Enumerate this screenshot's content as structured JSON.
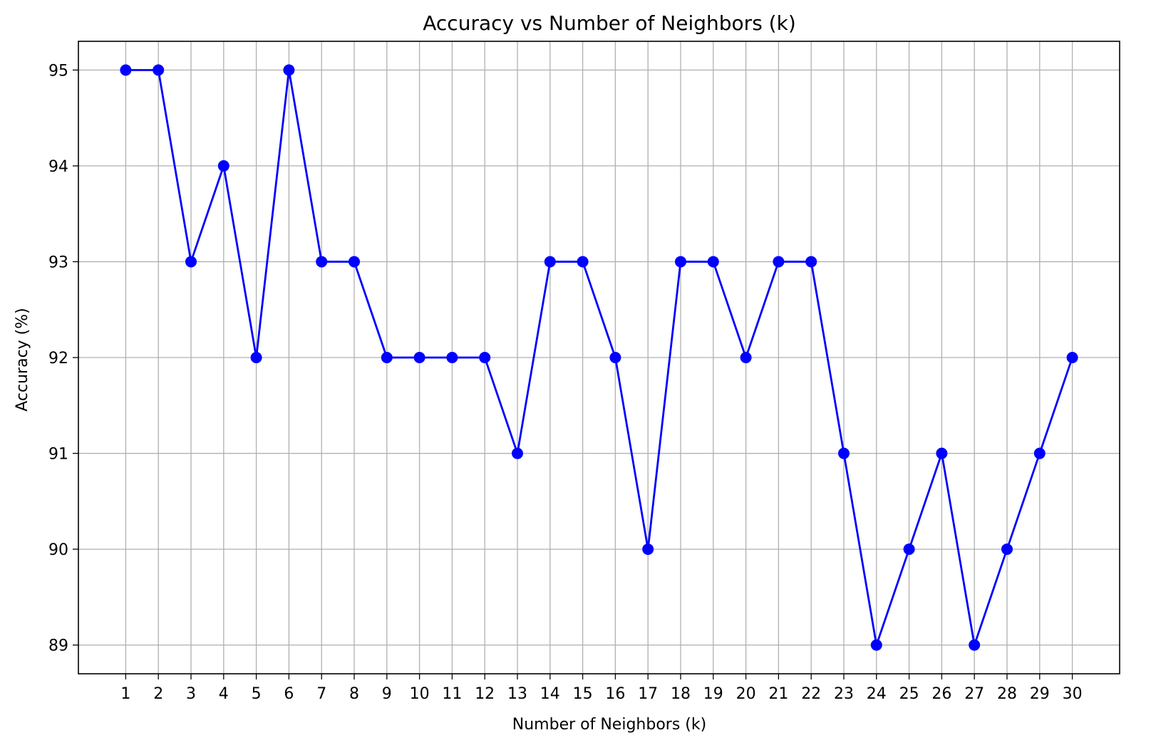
{
  "chart_data": {
    "type": "line",
    "title": "Accuracy vs Number of Neighbors (k)",
    "xlabel": "Number of Neighbors (k)",
    "ylabel": "Accuracy (%)",
    "x": [
      1,
      2,
      3,
      4,
      5,
      6,
      7,
      8,
      9,
      10,
      11,
      12,
      13,
      14,
      15,
      16,
      17,
      18,
      19,
      20,
      21,
      22,
      23,
      24,
      25,
      26,
      27,
      28,
      29,
      30
    ],
    "series": [
      {
        "values": [
          95,
          95,
          93,
          94,
          92,
          95,
          93,
          93,
          92,
          92,
          92,
          92,
          91,
          93,
          93,
          92,
          90,
          93,
          93,
          92,
          93,
          93,
          91,
          89,
          90,
          91,
          89,
          90,
          91,
          92
        ],
        "color": "#0000ff",
        "marker": "circle"
      }
    ],
    "xticks": [
      1,
      2,
      3,
      4,
      5,
      6,
      7,
      8,
      9,
      10,
      11,
      12,
      13,
      14,
      15,
      16,
      17,
      18,
      19,
      20,
      21,
      22,
      23,
      24,
      25,
      26,
      27,
      28,
      29,
      30
    ],
    "yticks": [
      89,
      90,
      91,
      92,
      93,
      94,
      95
    ],
    "xlim": [
      -0.45,
      31.45
    ],
    "ylim": [
      88.7,
      95.3
    ],
    "grid": true,
    "grid_color": "#b0b0b0"
  }
}
